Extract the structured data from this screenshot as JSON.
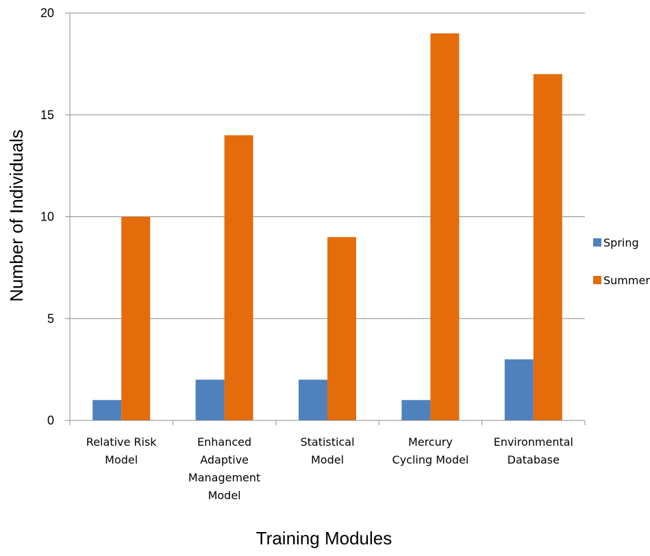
{
  "chart_data": {
    "type": "bar",
    "title": "",
    "xlabel": "Training Modules",
    "ylabel": "Number of Individuals",
    "ylim": [
      0,
      20
    ],
    "yticks": [
      0,
      5,
      10,
      15,
      20
    ],
    "grid": true,
    "legend_position": "right",
    "categories": [
      [
        "Relative Risk",
        "Model"
      ],
      [
        "Enhanced",
        "Adaptive",
        "Management",
        "Model"
      ],
      [
        "Statistical",
        "Model"
      ],
      [
        "Mercury",
        "Cycling Model"
      ],
      [
        "Environmental",
        "Database"
      ]
    ],
    "series": [
      {
        "name": "Spring",
        "color": "#4F81BD",
        "values": [
          1,
          2,
          2,
          1,
          3
        ]
      },
      {
        "name": "Summer",
        "color": "#E46C0A",
        "values": [
          10,
          14,
          9,
          19,
          17
        ]
      }
    ]
  }
}
